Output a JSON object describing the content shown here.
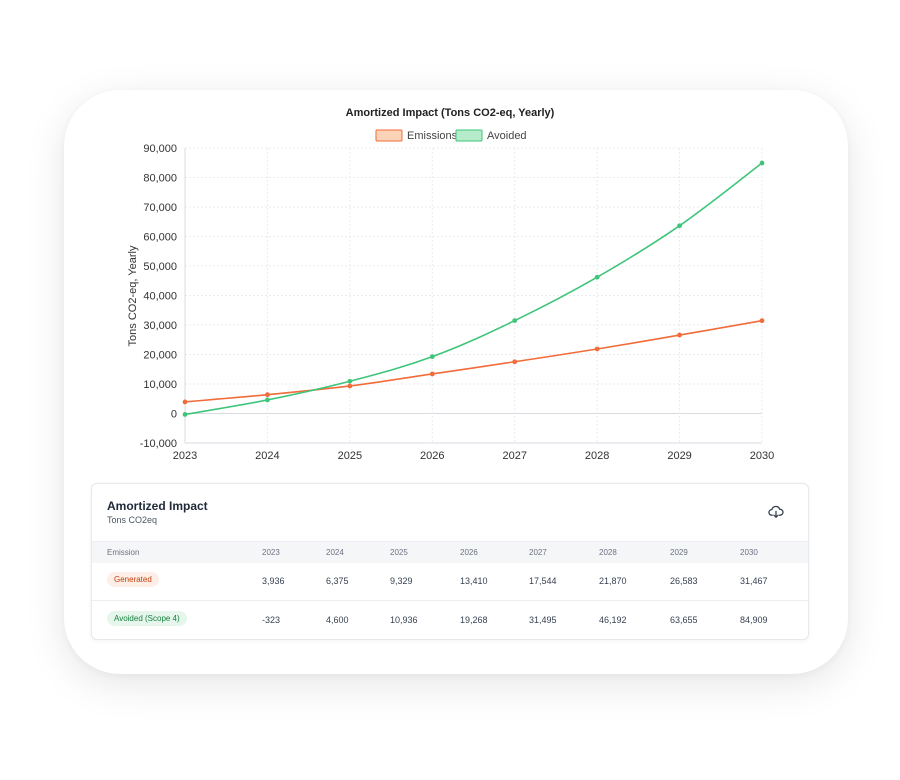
{
  "chart_data": {
    "type": "line",
    "title": "Amortized Impact (Tons CO2-eq, Yearly)",
    "ylabel": "Tons CO2-eq, Yearly",
    "xlabel": "",
    "x": [
      "2023",
      "2024",
      "2025",
      "2026",
      "2027",
      "2028",
      "2029",
      "2030"
    ],
    "ylim": [
      -10000,
      90000
    ],
    "yticks": [
      "90,000",
      "80,000",
      "70,000",
      "60,000",
      "50,000",
      "40,000",
      "30,000",
      "20,000",
      "10,000",
      "0",
      "-10,000"
    ],
    "ytick_values": [
      90000,
      80000,
      70000,
      60000,
      50000,
      40000,
      30000,
      20000,
      10000,
      0,
      -10000
    ],
    "grid": true,
    "legend_position": "top",
    "series": [
      {
        "name": "Emissions",
        "color": "#f26b3a",
        "values": [
          3936,
          6375,
          9329,
          13410,
          17544,
          21870,
          26583,
          31467
        ]
      },
      {
        "name": "Avoided",
        "color": "#3ec57a",
        "values": [
          -323,
          4600,
          10936,
          19268,
          31495,
          46192,
          63655,
          84909
        ]
      }
    ]
  },
  "panel": {
    "title": "Amortized Impact",
    "subtitle": "Tons CO2eq",
    "download_icon": "cloud-download-icon"
  },
  "table": {
    "headers": [
      "Emission",
      "2023",
      "2024",
      "2025",
      "2026",
      "2027",
      "2028",
      "2029",
      "2030"
    ],
    "rows": [
      {
        "label": "Generated",
        "values": [
          "3,936",
          "6,375",
          "9,329",
          "13,410",
          "17,544",
          "21,870",
          "26,583",
          "31,467"
        ]
      },
      {
        "label": "Avoided (Scope 4)",
        "values": [
          "-323",
          "4,600",
          "10,936",
          "19,268",
          "31,495",
          "46,192",
          "63,655",
          "84,909"
        ]
      }
    ]
  }
}
